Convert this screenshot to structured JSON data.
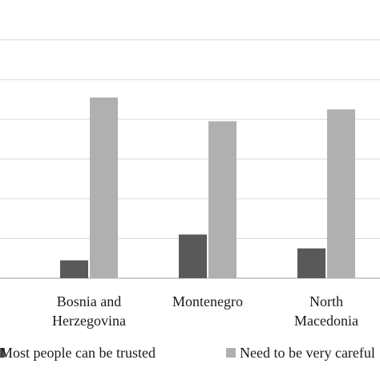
{
  "chart_data": {
    "type": "bar",
    "categories": [
      [
        "Bosnia and",
        "Herzegovina"
      ],
      [
        "Montenegro"
      ],
      [
        "North",
        "Macedonia"
      ]
    ],
    "series": [
      {
        "name": "Most people can be trusted",
        "color": "#595959",
        "values": [
          4.5,
          11,
          7.5
        ]
      },
      {
        "name": "Need to be very careful",
        "color": "#b0b0b0",
        "values": [
          45.5,
          39.5,
          42.5
        ]
      }
    ],
    "ylim": [
      0,
      65
    ],
    "grid": true,
    "legend_position": "bottom"
  }
}
